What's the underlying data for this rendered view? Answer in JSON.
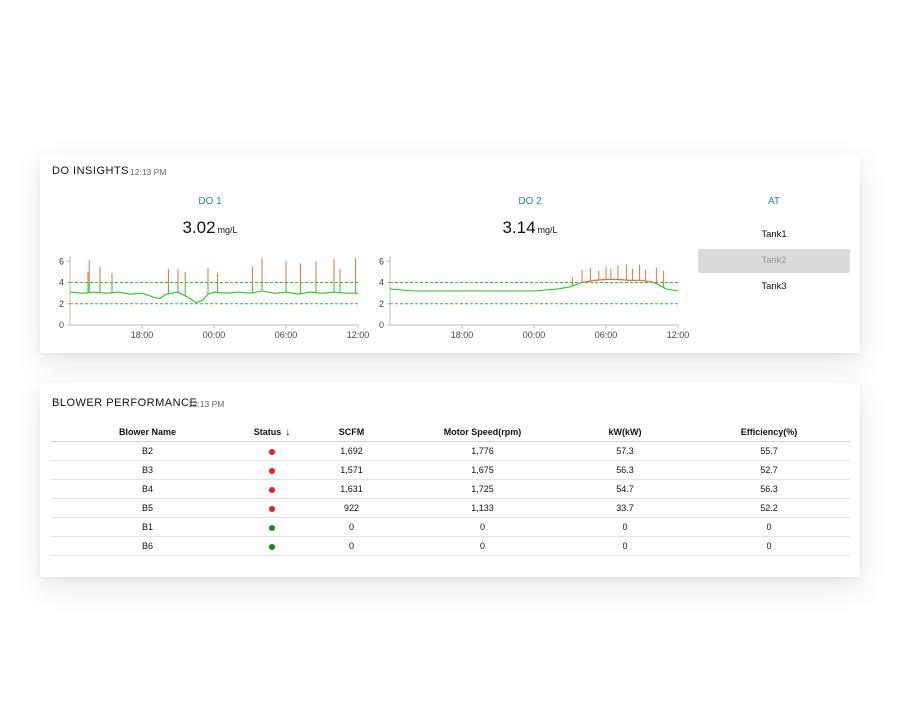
{
  "do_insights": {
    "title": "DO INSIGHTS",
    "time": "12:13 PM",
    "panels": [
      {
        "name": "DO 1",
        "value": "3.02",
        "unit": "mg/L",
        "chart_data": {
          "type": "line",
          "x_ticks": [
            "18:00",
            "00:00",
            "06:00",
            "12:00"
          ],
          "y_ticks": [
            0,
            2,
            4,
            6
          ],
          "ylim": [
            0,
            6.5
          ],
          "xlim": [
            0,
            24
          ],
          "thresholds": [
            {
              "value": 4,
              "color": "#2ec02e"
            },
            {
              "value": 2,
              "color": "#2ec02e"
            }
          ],
          "series": [
            {
              "color": "#2ec02e",
              "values": [
                [
                  0,
                  3.1
                ],
                [
                  1,
                  3.0
                ],
                [
                  2,
                  3.1
                ],
                [
                  3,
                  3.0
                ],
                [
                  4,
                  3.1
                ],
                [
                  5,
                  2.9
                ],
                [
                  6,
                  3.0
                ],
                [
                  7,
                  2.6
                ],
                [
                  7.5,
                  2.5
                ],
                [
                  8,
                  2.9
                ],
                [
                  9,
                  3.1
                ],
                [
                  10,
                  2.5
                ],
                [
                  10.5,
                  2.1
                ],
                [
                  11,
                  2.3
                ],
                [
                  11.5,
                  2.9
                ],
                [
                  12,
                  3.1
                ],
                [
                  13,
                  3.0
                ],
                [
                  14,
                  3.1
                ],
                [
                  15,
                  3.0
                ],
                [
                  16,
                  3.2
                ],
                [
                  17,
                  3.0
                ],
                [
                  18,
                  3.1
                ],
                [
                  19,
                  2.9
                ],
                [
                  20,
                  3.1
                ],
                [
                  21,
                  3.0
                ],
                [
                  22,
                  3.1
                ],
                [
                  23,
                  3.0
                ],
                [
                  24,
                  3.0
                ]
              ]
            },
            {
              "color": "#e8703a",
              "values": [
                [
                  1.5,
                  5.0
                ],
                [
                  1.6,
                  6.1
                ],
                [
                  2.5,
                  5.5
                ],
                [
                  3.5,
                  4.9
                ],
                [
                  8.2,
                  5.3
                ],
                [
                  9,
                  5.3
                ],
                [
                  9.6,
                  5.0
                ],
                [
                  11.5,
                  5.4
                ],
                [
                  12.3,
                  4.9
                ],
                [
                  15.2,
                  5.5
                ],
                [
                  16,
                  6.3
                ],
                [
                  18,
                  6.0
                ],
                [
                  19.2,
                  5.8
                ],
                [
                  20.5,
                  6.0
                ],
                [
                  22,
                  6.2
                ],
                [
                  22.5,
                  5.3
                ],
                [
                  23.8,
                  6.3
                ]
              ]
            }
          ]
        }
      },
      {
        "name": "DO 2",
        "value": "3.14",
        "unit": "mg/L",
        "chart_data": {
          "type": "line",
          "x_ticks": [
            "18:00",
            "00:00",
            "06:00",
            "12:00"
          ],
          "y_ticks": [
            0,
            2,
            4,
            6
          ],
          "ylim": [
            0,
            6.5
          ],
          "xlim": [
            0,
            24
          ],
          "thresholds": [
            {
              "value": 4,
              "color": "#2ec02e"
            },
            {
              "value": 2,
              "color": "#2ec02e"
            }
          ],
          "series": [
            {
              "color": "#2ec02e",
              "values": [
                [
                  0,
                  3.4
                ],
                [
                  1,
                  3.3
                ],
                [
                  2,
                  3.2
                ],
                [
                  3,
                  3.2
                ],
                [
                  4,
                  3.2
                ],
                [
                  5,
                  3.2
                ],
                [
                  6,
                  3.2
                ],
                [
                  7,
                  3.2
                ],
                [
                  8,
                  3.2
                ],
                [
                  9,
                  3.2
                ],
                [
                  10,
                  3.2
                ],
                [
                  11,
                  3.2
                ],
                [
                  12,
                  3.2
                ],
                [
                  13,
                  3.3
                ],
                [
                  14,
                  3.4
                ],
                [
                  15,
                  3.6
                ],
                [
                  16,
                  4.0
                ],
                [
                  17,
                  4.2
                ],
                [
                  18,
                  4.3
                ],
                [
                  19,
                  4.3
                ],
                [
                  20,
                  4.2
                ],
                [
                  21,
                  4.2
                ],
                [
                  22,
                  4.0
                ],
                [
                  23,
                  3.4
                ],
                [
                  24,
                  3.2
                ]
              ]
            },
            {
              "color": "#e8703a",
              "values": [
                [
                  15.2,
                  4.5
                ],
                [
                  16,
                  5.2
                ],
                [
                  16.7,
                  5.4
                ],
                [
                  17.4,
                  5.1
                ],
                [
                  18,
                  5.5
                ],
                [
                  18.4,
                  5.3
                ],
                [
                  19,
                  5.6
                ],
                [
                  19.7,
                  5.7
                ],
                [
                  20.2,
                  5.3
                ],
                [
                  20.8,
                  5.7
                ],
                [
                  21.3,
                  5.2
                ],
                [
                  22.2,
                  5.4
                ],
                [
                  22.8,
                  5.1
                ]
              ]
            }
          ]
        }
      }
    ],
    "at": {
      "label": "AT",
      "tanks": [
        "Tank1",
        "Tank2",
        "Tank3"
      ],
      "selected": "Tank2"
    }
  },
  "blower_performance": {
    "title": "BLOWER PERFORMANCE",
    "time": "12:13 PM",
    "columns": [
      "Blower Name",
      "Status",
      "SCFM",
      "Motor Speed(rpm)",
      "kW(kW)",
      "Efficiency(%)"
    ],
    "status_colors": {
      "red": "#f01b1b",
      "green": "#168a16"
    },
    "rows": [
      {
        "name": "B2",
        "status": "red",
        "scfm": "1,692",
        "motor_speed": "1,776",
        "kw": "57.3",
        "efficiency": "55.7"
      },
      {
        "name": "B3",
        "status": "red",
        "scfm": "1,571",
        "motor_speed": "1,675",
        "kw": "56.3",
        "efficiency": "52.7"
      },
      {
        "name": "B4",
        "status": "red",
        "scfm": "1,631",
        "motor_speed": "1,725",
        "kw": "54.7",
        "efficiency": "56.3"
      },
      {
        "name": "B5",
        "status": "red",
        "scfm": "922",
        "motor_speed": "1,133",
        "kw": "33.7",
        "efficiency": "52.2"
      },
      {
        "name": "B1",
        "status": "green",
        "scfm": "0",
        "motor_speed": "0",
        "kw": "0",
        "efficiency": "0"
      },
      {
        "name": "B6",
        "status": "green",
        "scfm": "0",
        "motor_speed": "0",
        "kw": "0",
        "efficiency": "0"
      }
    ]
  }
}
